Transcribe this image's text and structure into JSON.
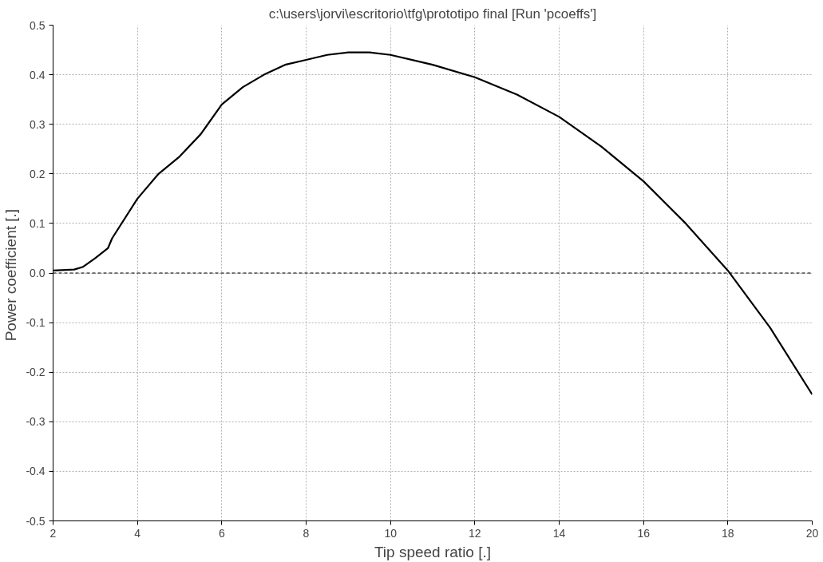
{
  "chart_data": {
    "type": "line",
    "title": "c:\\users\\jorvi\\escritorio\\tfg\\prototipo final [Run 'pcoeffs']",
    "xlabel": "Tip speed ratio [.]",
    "ylabel": "Power coefficient  [.]",
    "x": [
      2,
      2.5,
      2.7,
      3.0,
      3.3,
      3.4,
      4.0,
      4.5,
      5.0,
      5.5,
      6.0,
      6.5,
      7.0,
      7.5,
      8.0,
      8.5,
      9.0,
      9.5,
      10.0,
      11.0,
      12.0,
      13.0,
      14.0,
      15.0,
      16.0,
      17.0,
      18.0,
      19.0,
      20.0
    ],
    "series": [
      {
        "color": "#000000",
        "values": [
          0.005,
          0.007,
          0.012,
          0.03,
          0.05,
          0.07,
          0.15,
          0.2,
          0.235,
          0.28,
          0.34,
          0.375,
          0.4,
          0.42,
          0.43,
          0.44,
          0.445,
          0.445,
          0.44,
          0.42,
          0.395,
          0.36,
          0.315,
          0.255,
          0.185,
          0.1,
          0.005,
          -0.11,
          -0.245
        ]
      }
    ],
    "xlim": [
      2,
      20
    ],
    "xticks": [
      2,
      4,
      6,
      8,
      10,
      12,
      14,
      16,
      18,
      20
    ],
    "ylim": [
      -0.5,
      0.5
    ],
    "yticks": [
      {
        "value": -0.5,
        "label": "-0.5"
      },
      {
        "value": -0.4,
        "label": "-0.4"
      },
      {
        "value": -0.3,
        "label": "-0.3"
      },
      {
        "value": -0.2,
        "label": "-0.2"
      },
      {
        "value": -0.1,
        "label": "-0.1"
      },
      {
        "value": 0,
        "label": "0.0"
      },
      {
        "value": 0.1,
        "label": "0.1"
      },
      {
        "value": 0.2,
        "label": "0.2"
      },
      {
        "value": 0.3,
        "label": "0.3"
      },
      {
        "value": 0.4,
        "label": "0.4"
      },
      {
        "value": 0.5,
        "label": "0.5"
      }
    ],
    "ref_lines": [
      {
        "axis": "y",
        "value": 0,
        "color": "#000000",
        "line_style": "dashed"
      }
    ],
    "grid": true,
    "marker": "none",
    "line_style": "solid"
  }
}
